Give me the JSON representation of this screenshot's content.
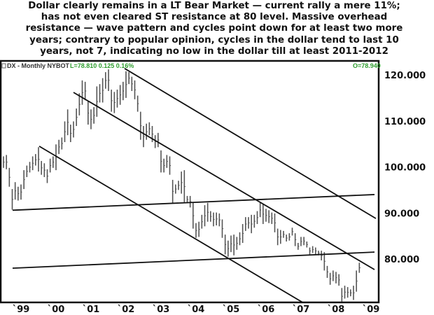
{
  "title_lines": [
    "Dollar clearly remains in a LT Bear Market — current rally a mere 11%;",
    "has not even cleared ST resistance at 80 level. Massive overhead",
    "resistance — wave pattern and cycles point down for at least two more",
    "years; contrary to popular opinion, cycles in the dollar tend to last 10",
    "years, not 7, indicating no low in the dollar till at least 2011-2012"
  ],
  "chart_header": {
    "symbol": "DX - Monthly  NYBOT",
    "last": "L=78.810  0.125  0.16%",
    "open": "O=78.940",
    "value_color": "#2e9e2e"
  },
  "chart_data": {
    "type": "ohlc-bar",
    "title": "",
    "xlabel": "",
    "ylabel": "",
    "ylim": [
      70.6,
      122.7
    ],
    "xlim": [
      "1998-06",
      "2009-03"
    ],
    "grid": false,
    "y_ticks": [
      "120.000",
      "110.000",
      "100.000",
      "90.000",
      "80.000"
    ],
    "y_tick_values": [
      120,
      110,
      100,
      90,
      80
    ],
    "x_ticks": [
      "`99",
      "`00",
      "`01",
      "`02",
      "`03",
      "`04",
      "`05",
      "`06",
      "`07",
      "`08",
      "`09"
    ],
    "x_tick_years": [
      1999,
      2000,
      2001,
      2002,
      2003,
      2004,
      2005,
      2006,
      2007,
      2008,
      2009
    ],
    "bar_color": "#555555",
    "start_month": "1998-07",
    "bars_high_low": [
      [
        102.3,
        99.8
      ],
      [
        102.6,
        99.5
      ],
      [
        99.8,
        95.7
      ],
      [
        95.2,
        90.7
      ],
      [
        96.7,
        92.9
      ],
      [
        95.7,
        92.7
      ],
      [
        96.2,
        92.9
      ],
      [
        99.3,
        95.2
      ],
      [
        100.3,
        97.8
      ],
      [
        101.1,
        98.8
      ],
      [
        102.3,
        99.3
      ],
      [
        102.8,
        100.3
      ],
      [
        104.3,
        99.0
      ],
      [
        101.3,
        98.3
      ],
      [
        100.8,
        97.8
      ],
      [
        99.5,
        96.5
      ],
      [
        101.8,
        98.8
      ],
      [
        102.3,
        99.8
      ],
      [
        104.9,
        99.3
      ],
      [
        105.9,
        102.8
      ],
      [
        106.4,
        103.8
      ],
      [
        109.9,
        105.4
      ],
      [
        112.5,
        106.9
      ],
      [
        109.2,
        105.4
      ],
      [
        109.9,
        106.4
      ],
      [
        112.7,
        108.9
      ],
      [
        116.0,
        111.2
      ],
      [
        118.8,
        113.5
      ],
      [
        118.5,
        114.5
      ],
      [
        114.2,
        109.2
      ],
      [
        112.5,
        108.2
      ],
      [
        113.0,
        109.4
      ],
      [
        117.5,
        110.9
      ],
      [
        118.0,
        114.0
      ],
      [
        119.3,
        114.0
      ],
      [
        120.6,
        117.0
      ],
      [
        121.2,
        116.5
      ],
      [
        116.8,
        112.0
      ],
      [
        116.3,
        111.7
      ],
      [
        116.8,
        112.9
      ],
      [
        117.8,
        113.5
      ],
      [
        118.5,
        114.5
      ],
      [
        120.8,
        115.0
      ],
      [
        120.6,
        118.0
      ],
      [
        119.6,
        116.5
      ],
      [
        118.8,
        114.7
      ],
      [
        115.5,
        112.0
      ],
      [
        112.0,
        105.9
      ],
      [
        108.9,
        104.3
      ],
      [
        109.4,
        105.9
      ],
      [
        109.7,
        106.9
      ],
      [
        108.9,
        105.4
      ],
      [
        106.9,
        104.1
      ],
      [
        107.4,
        104.3
      ],
      [
        103.6,
        98.8
      ],
      [
        101.8,
        98.8
      ],
      [
        102.6,
        99.8
      ],
      [
        102.3,
        98.3
      ],
      [
        97.2,
        92.2
      ],
      [
        96.2,
        94.2
      ],
      [
        97.0,
        95.0
      ],
      [
        99.0,
        94.2
      ],
      [
        99.3,
        92.2
      ],
      [
        93.7,
        92.2
      ],
      [
        93.7,
        91.2
      ],
      [
        92.2,
        86.6
      ],
      [
        87.8,
        84.6
      ],
      [
        88.1,
        84.8
      ],
      [
        89.6,
        86.6
      ],
      [
        91.7,
        87.1
      ],
      [
        92.2,
        88.1
      ],
      [
        90.4,
        88.1
      ],
      [
        90.1,
        87.1
      ],
      [
        90.1,
        87.3
      ],
      [
        89.9,
        87.1
      ],
      [
        88.6,
        84.6
      ],
      [
        85.3,
        81.0
      ],
      [
        84.0,
        80.5
      ],
      [
        85.1,
        81.5
      ],
      [
        85.3,
        80.8
      ],
      [
        84.8,
        82.0
      ],
      [
        85.8,
        83.0
      ],
      [
        87.6,
        83.5
      ],
      [
        89.1,
        86.1
      ],
      [
        89.1,
        86.6
      ],
      [
        89.6,
        85.6
      ],
      [
        89.6,
        86.8
      ],
      [
        90.4,
        87.6
      ],
      [
        92.2,
        89.1
      ],
      [
        91.9,
        87.6
      ],
      [
        90.9,
        88.1
      ],
      [
        90.6,
        87.8
      ],
      [
        90.1,
        87.6
      ],
      [
        89.9,
        85.8
      ],
      [
        86.6,
        83.0
      ],
      [
        86.3,
        83.3
      ],
      [
        86.1,
        84.6
      ],
      [
        85.3,
        83.8
      ],
      [
        85.6,
        84.0
      ],
      [
        86.8,
        85.1
      ],
      [
        85.6,
        82.8
      ],
      [
        83.5,
        82.0
      ],
      [
        84.8,
        82.8
      ],
      [
        84.8,
        83.0
      ],
      [
        83.8,
        82.5
      ],
      [
        82.5,
        81.0
      ],
      [
        82.8,
        81.3
      ],
      [
        82.5,
        81.0
      ],
      [
        81.8,
        80.8
      ],
      [
        81.8,
        79.7
      ],
      [
        81.5,
        77.5
      ],
      [
        78.5,
        75.9
      ],
      [
        77.0,
        74.4
      ],
      [
        77.5,
        75.2
      ],
      [
        77.2,
        74.7
      ],
      [
        76.7,
        74.2
      ],
      [
        73.7,
        70.1
      ],
      [
        74.2,
        71.4
      ],
      [
        73.9,
        71.6
      ],
      [
        73.4,
        71.9
      ],
      [
        74.2,
        71.1
      ],
      [
        77.5,
        72.9
      ],
      [
        79.2,
        77.0
      ]
    ],
    "trendlines": [
      {
        "from": [
          2001.96,
          121.4
        ],
        "to": [
          2009.14,
          88.8
        ]
      },
      {
        "from": [
          2000.5,
          116.2
        ],
        "to": [
          2009.1,
          77.7
        ]
      },
      {
        "from": [
          1999.52,
          104.5
        ],
        "to": [
          2007.04,
          70.6
        ]
      },
      {
        "from": [
          1998.76,
          90.6
        ],
        "to": [
          2009.1,
          94.0
        ]
      },
      {
        "from": [
          1998.76,
          78.0
        ],
        "to": [
          2009.1,
          81.5
        ]
      }
    ]
  }
}
